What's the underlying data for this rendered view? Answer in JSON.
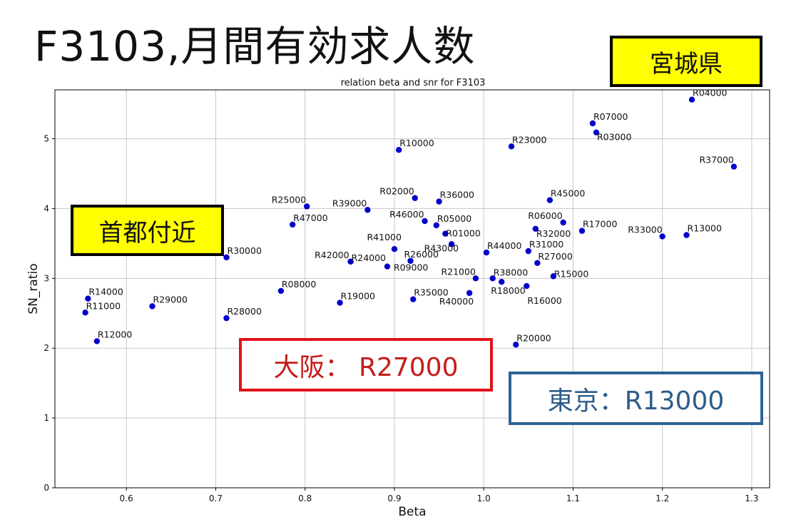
{
  "slide": {
    "title": "F3103,月間有効求人数",
    "prefecture_label": "宮城県",
    "capital_area_label": "首都付近",
    "osaka_label": "大阪： R27000",
    "tokyo_label": "東京：R13000"
  },
  "colors": {
    "point": "#0000cc",
    "osaka": "#e0111b",
    "tokyo": "#2e6497",
    "highlight": "#ffff00",
    "grid": "#c8c8c8"
  },
  "chart_data": {
    "type": "scatter",
    "title": "relation beta and snr for F3103",
    "xlabel": "Beta",
    "ylabel": "SN_ratio",
    "xlim": [
      0.52,
      1.32
    ],
    "ylim": [
      0,
      5.7
    ],
    "grid": true,
    "xticks": [
      0.6,
      0.7,
      0.8,
      0.9,
      1.0,
      1.1,
      1.2,
      1.3
    ],
    "xtick_labels": [
      "0.6",
      "0.7",
      "0.8",
      "0.9",
      "1.0",
      "1.1",
      "1.2",
      "1.3"
    ],
    "yticks": [
      0,
      1,
      2,
      3,
      4,
      5
    ],
    "ytick_labels": [
      "0",
      "1",
      "2",
      "3",
      "4",
      "5"
    ],
    "points": [
      {
        "label": "R04000",
        "x": 1.233,
        "y": 5.56,
        "anchor": "start",
        "dx": 0,
        "dy": -5
      },
      {
        "label": "R07000",
        "x": 1.122,
        "y": 5.22,
        "anchor": "start",
        "dx": 0,
        "dy": -5
      },
      {
        "label": "R03000",
        "x": 1.126,
        "y": 5.09,
        "anchor": "start",
        "dx": 0,
        "dy": 11
      },
      {
        "label": "R10000",
        "x": 0.905,
        "y": 4.84,
        "anchor": "start",
        "dx": 0,
        "dy": -5
      },
      {
        "label": "R23000",
        "x": 1.031,
        "y": 4.89,
        "anchor": "start",
        "dx": 0,
        "dy": -5
      },
      {
        "label": "R37000",
        "x": 1.28,
        "y": 4.6,
        "anchor": "end",
        "dx": 0,
        "dy": -5
      },
      {
        "label": "R02000",
        "x": 0.923,
        "y": 4.15,
        "anchor": "end",
        "dx": -1,
        "dy": -5
      },
      {
        "label": "R36000",
        "x": 0.95,
        "y": 4.1,
        "anchor": "start",
        "dx": 0,
        "dy": -5
      },
      {
        "label": "R45000",
        "x": 1.074,
        "y": 4.12,
        "anchor": "start",
        "dx": 0,
        "dy": -5
      },
      {
        "label": "R25000",
        "x": 0.802,
        "y": 4.03,
        "anchor": "end",
        "dx": -1,
        "dy": -5
      },
      {
        "label": "R39000",
        "x": 0.87,
        "y": 3.98,
        "anchor": "end",
        "dx": -1,
        "dy": -5
      },
      {
        "label": "R46000",
        "x": 0.934,
        "y": 3.82,
        "anchor": "end",
        "dx": -1,
        "dy": -5
      },
      {
        "label": "R05000",
        "x": 0.947,
        "y": 3.76,
        "anchor": "start",
        "dx": 0,
        "dy": -5
      },
      {
        "label": "R06000",
        "x": 1.089,
        "y": 3.8,
        "anchor": "end",
        "dx": -1,
        "dy": -5
      },
      {
        "label": "R47000",
        "x": 0.786,
        "y": 3.77,
        "anchor": "start",
        "dx": 0,
        "dy": -5
      },
      {
        "label": "R01000",
        "x": 0.957,
        "y": 3.64,
        "anchor": "start",
        "dx": 0,
        "dy": 4
      },
      {
        "label": "R32000",
        "x": 1.058,
        "y": 3.71,
        "anchor": "start",
        "dx": 0,
        "dy": 11
      },
      {
        "label": "R17000",
        "x": 1.11,
        "y": 3.68,
        "anchor": "start",
        "dx": 0,
        "dy": -5
      },
      {
        "label": "R33000",
        "x": 1.2,
        "y": 3.6,
        "anchor": "end",
        "dx": 0,
        "dy": -5
      },
      {
        "label": "R13000",
        "x": 1.227,
        "y": 3.62,
        "anchor": "start",
        "dx": 0,
        "dy": -5
      },
      {
        "label": "R41000",
        "x": 0.9,
        "y": 3.42,
        "anchor": "end",
        "dx": 10,
        "dy": -12
      },
      {
        "label": "R43000",
        "x": 0.964,
        "y": 3.49,
        "anchor": "end",
        "dx": 10,
        "dy": 10
      },
      {
        "label": "R31000",
        "x": 1.05,
        "y": 3.39,
        "anchor": "start",
        "dx": 0,
        "dy": -5
      },
      {
        "label": "R44000",
        "x": 1.003,
        "y": 3.37,
        "anchor": "start",
        "dx": 0,
        "dy": -5
      },
      {
        "label": "R30000",
        "x": 0.712,
        "y": 3.3,
        "anchor": "start",
        "dx": 0,
        "dy": -5
      },
      {
        "label": "R42000",
        "x": 0.851,
        "y": 3.24,
        "anchor": "end",
        "dx": -2,
        "dy": -5
      },
      {
        "label": "R24000",
        "x": 0.851,
        "y": 3.24,
        "anchor": "start",
        "dx": 0,
        "dy": -1
      },
      {
        "label": "R26000",
        "x": 0.918,
        "y": 3.25,
        "anchor": "start",
        "dx": -10,
        "dy": -5
      },
      {
        "label": "R27000",
        "x": 1.06,
        "y": 3.22,
        "anchor": "start",
        "dx": 0,
        "dy": -5
      },
      {
        "label": "R09000",
        "x": 0.892,
        "y": 3.17,
        "anchor": "start",
        "dx": 8,
        "dy": 6
      },
      {
        "label": "R21000",
        "x": 0.991,
        "y": 3.0,
        "anchor": "end",
        "dx": 0,
        "dy": -5
      },
      {
        "label": "R38000",
        "x": 1.01,
        "y": 3.0,
        "anchor": "start",
        "dx": 0,
        "dy": -4
      },
      {
        "label": "R15000",
        "x": 1.078,
        "y": 3.03,
        "anchor": "start",
        "dx": 0,
        "dy": 1
      },
      {
        "label": "R18000",
        "x": 1.02,
        "y": 2.95,
        "anchor": "start",
        "dx": -16,
        "dy": 17
      },
      {
        "label": "R16000",
        "x": 1.048,
        "y": 2.89,
        "anchor": "start",
        "dx": 0,
        "dy": 25
      },
      {
        "label": "R40000",
        "x": 0.984,
        "y": 2.79,
        "anchor": "end",
        "dx": 6,
        "dy": 16
      },
      {
        "label": "R08000",
        "x": 0.773,
        "y": 2.82,
        "anchor": "start",
        "dx": 0,
        "dy": -5
      },
      {
        "label": "R35000",
        "x": 0.921,
        "y": 2.7,
        "anchor": "start",
        "dx": 0,
        "dy": -5
      },
      {
        "label": "R19000",
        "x": 0.839,
        "y": 2.65,
        "anchor": "start",
        "dx": 0,
        "dy": -5
      },
      {
        "label": "R14000",
        "x": 0.557,
        "y": 2.71,
        "anchor": "start",
        "dx": 0,
        "dy": -5
      },
      {
        "label": "R11000",
        "x": 0.554,
        "y": 2.51,
        "anchor": "start",
        "dx": 0,
        "dy": -5
      },
      {
        "label": "R29000",
        "x": 0.629,
        "y": 2.6,
        "anchor": "start",
        "dx": 0,
        "dy": -5
      },
      {
        "label": "R28000",
        "x": 0.712,
        "y": 2.43,
        "anchor": "start",
        "dx": 0,
        "dy": -5
      },
      {
        "label": "R12000",
        "x": 0.567,
        "y": 2.1,
        "anchor": "start",
        "dx": 0,
        "dy": -5
      },
      {
        "label": "R20000",
        "x": 1.036,
        "y": 2.05,
        "anchor": "start",
        "dx": 0,
        "dy": -5
      }
    ]
  }
}
